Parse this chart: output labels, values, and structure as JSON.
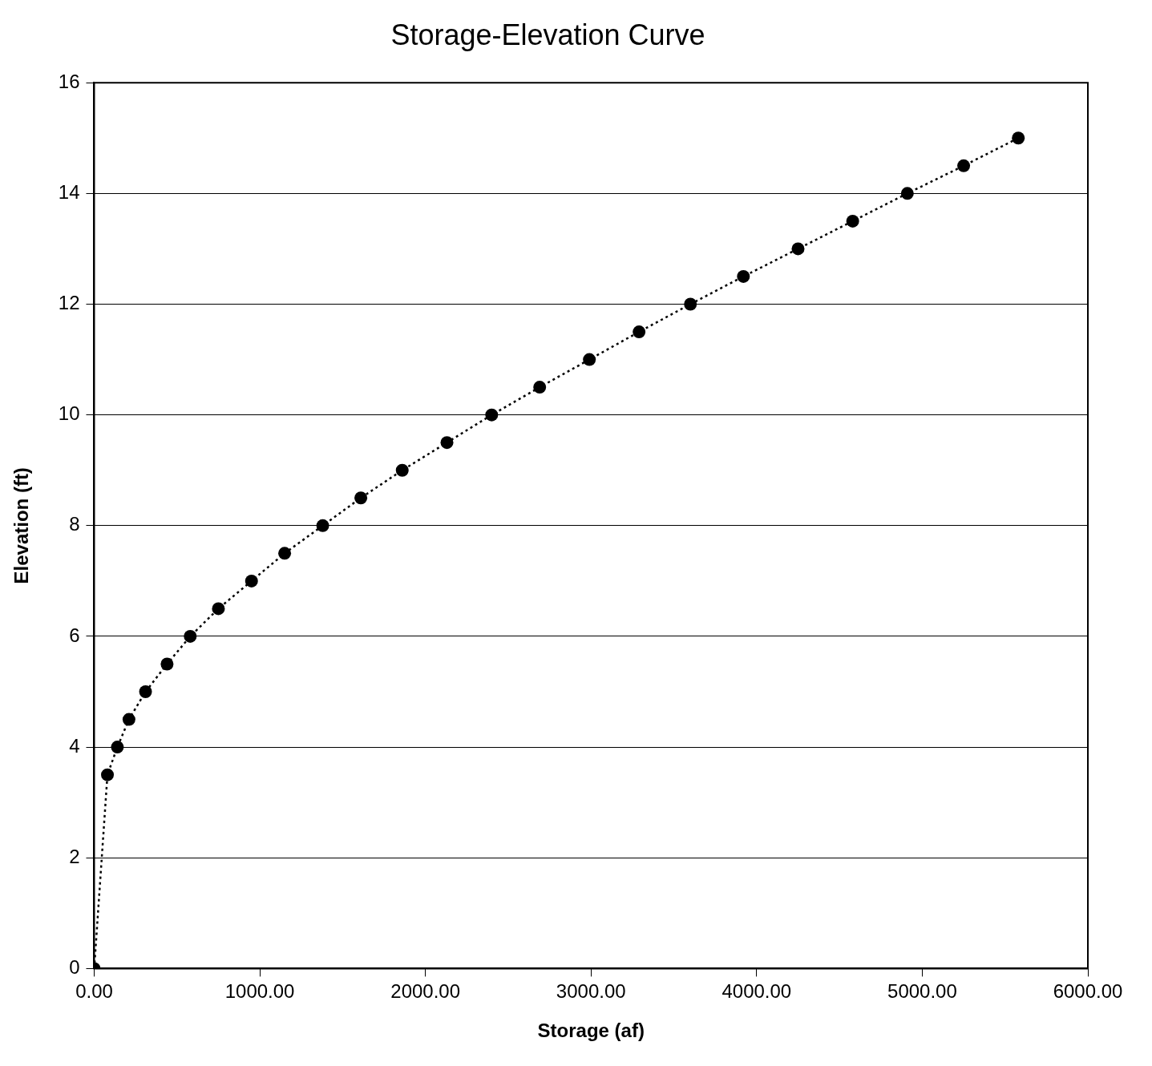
{
  "chart_data": {
    "type": "line",
    "title": "Storage-Elevation Curve",
    "xlabel": "Storage (af)",
    "ylabel": "Elevation (ft)",
    "x": [
      0,
      80,
      140,
      210,
      310,
      440,
      580,
      750,
      950,
      1150,
      1380,
      1610,
      1860,
      2130,
      2400,
      2690,
      2990,
      3290,
      3600,
      3920,
      4250,
      4580,
      4910,
      5250,
      5580
    ],
    "series": [
      {
        "color": "#000000",
        "values": [
          0,
          3.5,
          4,
          4.5,
          5,
          5.5,
          6,
          6.5,
          7,
          7.5,
          8,
          8.5,
          9,
          9.5,
          10,
          10.5,
          11,
          11.5,
          12,
          12.5,
          13,
          13.5,
          14,
          14.5,
          15
        ]
      }
    ],
    "xlim": [
      0,
      6000
    ],
    "xticks": [
      {
        "value": 0,
        "label": "0.00"
      },
      {
        "value": 1000,
        "label": "1000.00"
      },
      {
        "value": 2000,
        "label": "2000.00"
      },
      {
        "value": 3000,
        "label": "3000.00"
      },
      {
        "value": 4000,
        "label": "4000.00"
      },
      {
        "value": 5000,
        "label": "5000.00"
      },
      {
        "value": 6000,
        "label": "6000.00"
      }
    ],
    "ylim": [
      0,
      16
    ],
    "yticks": [
      0,
      2,
      4,
      6,
      8,
      10,
      12,
      14,
      16
    ],
    "grid": "y",
    "legend": false,
    "marker": "circle",
    "line_style": "dotted"
  }
}
